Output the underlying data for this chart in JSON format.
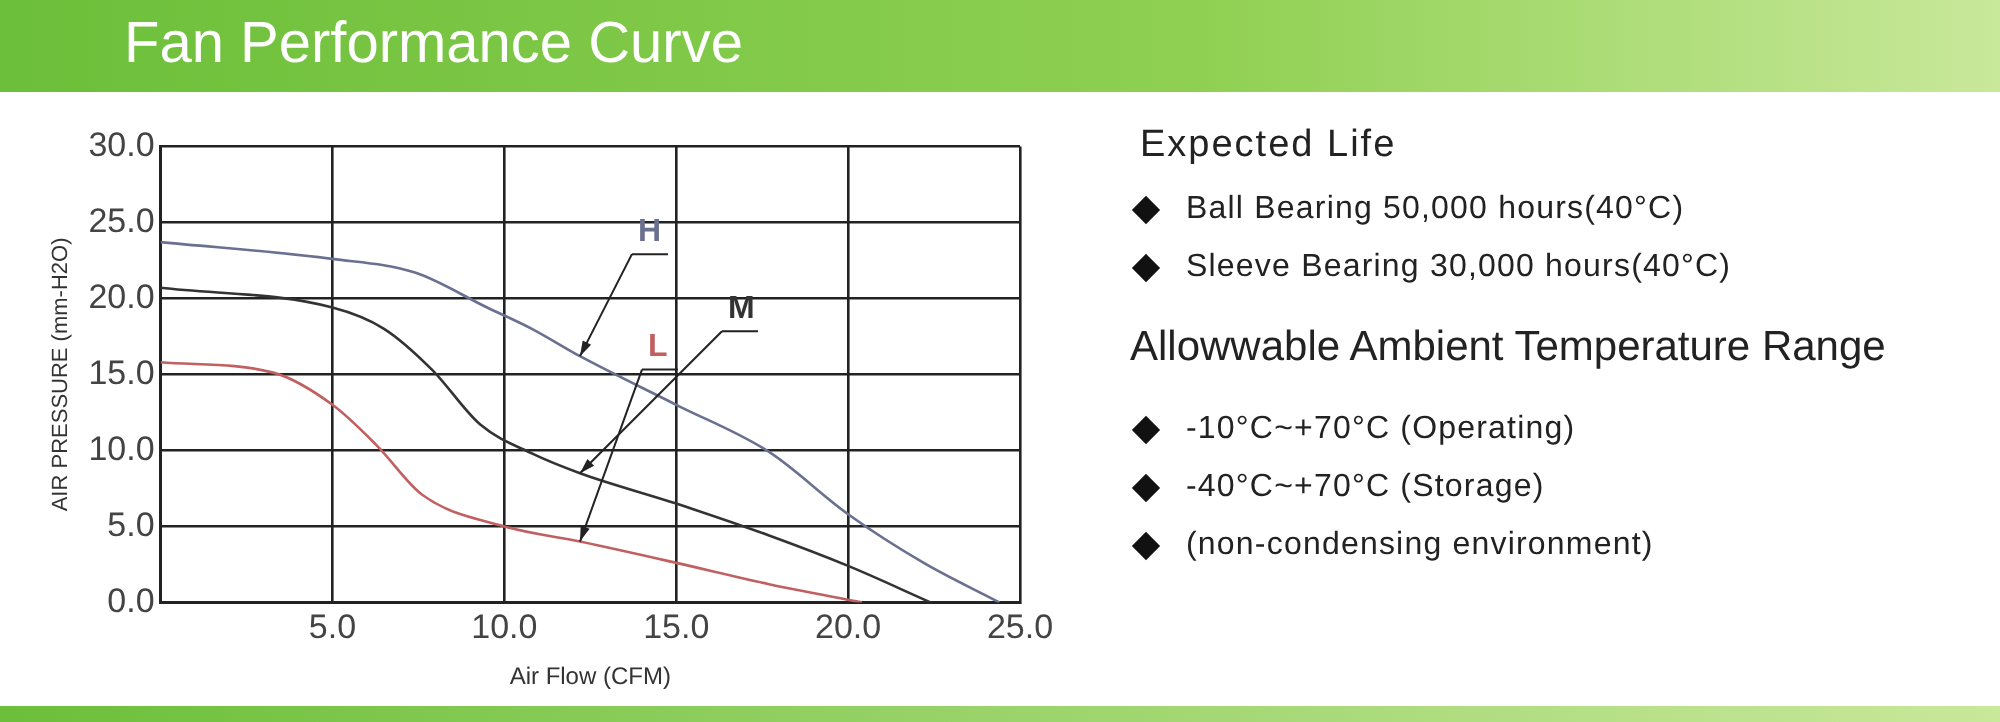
{
  "chart_data": [
    {
      "type": "line",
      "title": "Fan Performance Curve",
      "xlabel": "Air Flow (CFM)",
      "ylabel": "AIR PRESSURE (mm-H2O)",
      "xlim": [
        0,
        25
      ],
      "xticks": [
        {
          "value": 5,
          "label": "5.0"
        },
        {
          "value": 10,
          "label": "10.0"
        },
        {
          "value": 15,
          "label": "15.0"
        },
        {
          "value": 20,
          "label": "20.0"
        },
        {
          "value": 25,
          "label": "25.0"
        }
      ],
      "ylim": [
        0,
        30
      ],
      "yticks": [
        {
          "value": 0,
          "label": "0.0"
        },
        {
          "value": 5,
          "label": "5.0"
        },
        {
          "value": 10,
          "label": "10.0"
        },
        {
          "value": 15,
          "label": "15.0"
        },
        {
          "value": 20,
          "label": "20.0"
        },
        {
          "value": 25,
          "label": "25.0"
        },
        {
          "value": 30,
          "label": "30.0"
        }
      ],
      "grid": true,
      "legend": false,
      "marker": "none",
      "line_style": "solid",
      "series": [
        {
          "name": "H",
          "color": "#6a7090",
          "x": [
            0,
            5,
            7.4,
            9.5,
            10.8,
            12.2,
            15,
            17.7,
            20,
            22.2,
            24.4
          ],
          "values": [
            23.7,
            22.6,
            21.7,
            19.4,
            18.0,
            16.2,
            13.0,
            9.9,
            5.8,
            2.6,
            0
          ]
        },
        {
          "name": "M",
          "color": "#333333",
          "x": [
            0,
            5,
            6.5,
            7.9,
            9.3,
            10.8,
            12.2,
            15,
            17.7,
            20,
            22.4
          ],
          "values": [
            20.7,
            19.4,
            18.0,
            15.3,
            11.7,
            9.8,
            8.5,
            6.5,
            4.4,
            2.4,
            0
          ]
        },
        {
          "name": "L",
          "color": "#c06060",
          "x": [
            0,
            3.3,
            5,
            6.3,
            7.6,
            10,
            12.2,
            15,
            17.7,
            20.4
          ],
          "values": [
            15.8,
            15.1,
            13.0,
            10.3,
            7.1,
            5.0,
            4.0,
            2.6,
            1.2,
            0
          ]
        }
      ]
    },
    {
      "type": "other",
      "title": "Expected Life",
      "annotations": [
        "Ball Bearing 50,000 hours(40°C)",
        "Sleeve Bearing 30,000 hours(40°C)"
      ]
    },
    {
      "type": "other",
      "title": "Allowwable Ambient Temperature Range",
      "annotations": [
        "-10°C~+70°C (Operating)",
        "-40°C~+70°C (Storage)",
        "(non-condensing environment)"
      ]
    }
  ]
}
